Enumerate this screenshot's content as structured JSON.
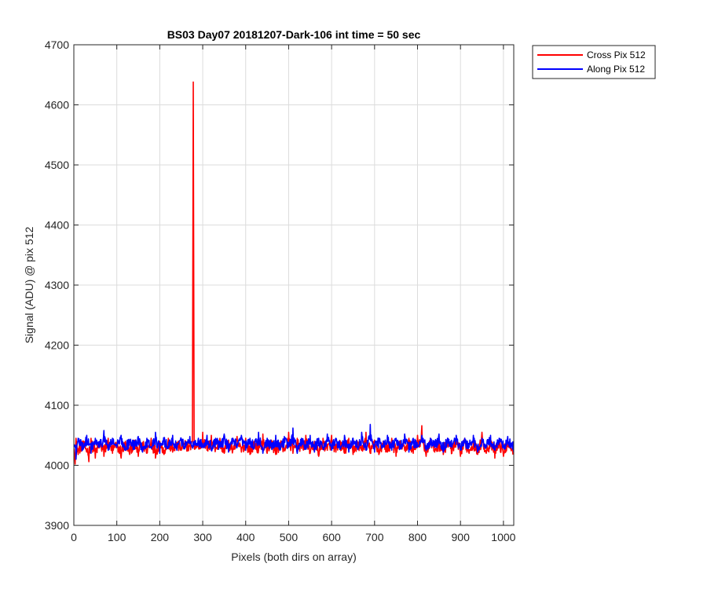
{
  "chart_data": {
    "type": "line",
    "title": "BS03 Day07 20181207-Dark-106 int time = 50 sec",
    "xlabel": "Pixels (both dirs on array)",
    "ylabel": "Signal (ADU) @ pix 512",
    "xlim": [
      0,
      1024
    ],
    "ylim": [
      3900,
      4700
    ],
    "xticks": [
      0,
      100,
      200,
      300,
      400,
      500,
      600,
      700,
      800,
      900,
      1000
    ],
    "yticks": [
      3900,
      4000,
      4100,
      4200,
      4300,
      4400,
      4500,
      4600,
      4700
    ],
    "grid": true,
    "legend_position": "outside-top-right",
    "series": [
      {
        "name": "Cross Pix 512",
        "color": "#ff0000",
        "noise": {
          "baseline": 4030,
          "amplitude": 14,
          "min_dip": 4000
        },
        "points": [
          [
            0,
            4028
          ],
          [
            3,
            4002
          ],
          [
            5,
            4045
          ],
          [
            10,
            4018
          ],
          [
            20,
            4040
          ],
          [
            30,
            4022
          ],
          [
            35,
            4006
          ],
          [
            40,
            4045
          ],
          [
            50,
            4012
          ],
          [
            60,
            4038
          ],
          [
            70,
            4015
          ],
          [
            80,
            4045
          ],
          [
            90,
            4020
          ],
          [
            100,
            4035
          ],
          [
            110,
            4012
          ],
          [
            120,
            4040
          ],
          [
            130,
            4018
          ],
          [
            140,
            4042
          ],
          [
            150,
            4015
          ],
          [
            160,
            4038
          ],
          [
            170,
            4020
          ],
          [
            180,
            4045
          ],
          [
            190,
            4012
          ],
          [
            200,
            4040
          ],
          [
            210,
            4018
          ],
          [
            220,
            4045
          ],
          [
            230,
            4022
          ],
          [
            240,
            4038
          ],
          [
            250,
            4025
          ],
          [
            260,
            4040
          ],
          [
            270,
            4032
          ],
          [
            276,
            4040
          ],
          [
            278,
            4638
          ],
          [
            280,
            4040
          ],
          [
            290,
            4030
          ],
          [
            300,
            4055
          ],
          [
            310,
            4025
          ],
          [
            320,
            4050
          ],
          [
            330,
            4030
          ],
          [
            340,
            4045
          ],
          [
            350,
            4020
          ],
          [
            360,
            4042
          ],
          [
            370,
            4025
          ],
          [
            380,
            4048
          ],
          [
            390,
            4022
          ],
          [
            400,
            4045
          ],
          [
            410,
            4018
          ],
          [
            420,
            4040
          ],
          [
            430,
            4025
          ],
          [
            440,
            4052
          ],
          [
            450,
            4020
          ],
          [
            460,
            4042
          ],
          [
            470,
            4018
          ],
          [
            480,
            4038
          ],
          [
            490,
            4025
          ],
          [
            500,
            4055
          ],
          [
            510,
            4020
          ],
          [
            520,
            4045
          ],
          [
            530,
            4028
          ],
          [
            540,
            4050
          ],
          [
            550,
            4020
          ],
          [
            560,
            4040
          ],
          [
            570,
            4015
          ],
          [
            580,
            4045
          ],
          [
            590,
            4025
          ],
          [
            600,
            4050
          ],
          [
            610,
            4022
          ],
          [
            620,
            4040
          ],
          [
            630,
            4020
          ],
          [
            640,
            4045
          ],
          [
            650,
            4018
          ],
          [
            660,
            4040
          ],
          [
            670,
            4025
          ],
          [
            680,
            4055
          ],
          [
            690,
            4020
          ],
          [
            700,
            4042
          ],
          [
            710,
            4018
          ],
          [
            720,
            4040
          ],
          [
            730,
            4022
          ],
          [
            740,
            4045
          ],
          [
            750,
            4015
          ],
          [
            760,
            4040
          ],
          [
            770,
            4025
          ],
          [
            780,
            4045
          ],
          [
            790,
            4020
          ],
          [
            800,
            4050
          ],
          [
            810,
            4066
          ],
          [
            820,
            4015
          ],
          [
            830,
            4045
          ],
          [
            840,
            4022
          ],
          [
            850,
            4040
          ],
          [
            860,
            4018
          ],
          [
            870,
            4045
          ],
          [
            880,
            4020
          ],
          [
            890,
            4040
          ],
          [
            900,
            4015
          ],
          [
            910,
            4045
          ],
          [
            920,
            4020
          ],
          [
            930,
            4040
          ],
          [
            940,
            4018
          ],
          [
            950,
            4055
          ],
          [
            960,
            4020
          ],
          [
            970,
            4040
          ],
          [
            980,
            4012
          ],
          [
            990,
            4038
          ],
          [
            1000,
            4015
          ],
          [
            1010,
            4040
          ],
          [
            1024,
            4020
          ]
        ]
      },
      {
        "name": "Along Pix 512",
        "color": "#0000ff",
        "noise": {
          "baseline": 4035,
          "amplitude": 13,
          "min_dip": 4005
        },
        "points": [
          [
            0,
            4035
          ],
          [
            5,
            4010
          ],
          [
            10,
            4045
          ],
          [
            20,
            4025
          ],
          [
            30,
            4050
          ],
          [
            40,
            4020
          ],
          [
            50,
            4045
          ],
          [
            60,
            4030
          ],
          [
            70,
            4058
          ],
          [
            80,
            4025
          ],
          [
            90,
            4045
          ],
          [
            100,
            4030
          ],
          [
            110,
            4050
          ],
          [
            120,
            4025
          ],
          [
            130,
            4042
          ],
          [
            140,
            4030
          ],
          [
            150,
            4048
          ],
          [
            160,
            4022
          ],
          [
            170,
            4045
          ],
          [
            180,
            4030
          ],
          [
            190,
            4055
          ],
          [
            200,
            4020
          ],
          [
            210,
            4045
          ],
          [
            220,
            4030
          ],
          [
            230,
            4050
          ],
          [
            240,
            4025
          ],
          [
            250,
            4045
          ],
          [
            260,
            4030
          ],
          [
            270,
            4048
          ],
          [
            280,
            4035
          ],
          [
            290,
            4045
          ],
          [
            300,
            4030
          ],
          [
            310,
            4050
          ],
          [
            320,
            4025
          ],
          [
            330,
            4045
          ],
          [
            340,
            4030
          ],
          [
            350,
            4052
          ],
          [
            360,
            4022
          ],
          [
            370,
            4045
          ],
          [
            380,
            4030
          ],
          [
            390,
            4050
          ],
          [
            400,
            4025
          ],
          [
            410,
            4045
          ],
          [
            420,
            4030
          ],
          [
            430,
            4055
          ],
          [
            440,
            4020
          ],
          [
            450,
            4045
          ],
          [
            460,
            4030
          ],
          [
            470,
            4050
          ],
          [
            480,
            4025
          ],
          [
            490,
            4048
          ],
          [
            500,
            4030
          ],
          [
            510,
            4062
          ],
          [
            520,
            4020
          ],
          [
            530,
            4045
          ],
          [
            540,
            4030
          ],
          [
            550,
            4050
          ],
          [
            560,
            4022
          ],
          [
            570,
            4045
          ],
          [
            580,
            4030
          ],
          [
            590,
            4052
          ],
          [
            600,
            4025
          ],
          [
            610,
            4045
          ],
          [
            620,
            4030
          ],
          [
            630,
            4050
          ],
          [
            640,
            4022
          ],
          [
            650,
            4045
          ],
          [
            660,
            4030
          ],
          [
            670,
            4055
          ],
          [
            680,
            4025
          ],
          [
            690,
            4068
          ],
          [
            700,
            4022
          ],
          [
            710,
            4045
          ],
          [
            720,
            4030
          ],
          [
            730,
            4050
          ],
          [
            740,
            4025
          ],
          [
            750,
            4045
          ],
          [
            760,
            4030
          ],
          [
            770,
            4052
          ],
          [
            780,
            4022
          ],
          [
            790,
            4045
          ],
          [
            800,
            4030
          ],
          [
            810,
            4050
          ],
          [
            820,
            4025
          ],
          [
            830,
            4045
          ],
          [
            840,
            4030
          ],
          [
            850,
            4052
          ],
          [
            860,
            4022
          ],
          [
            870,
            4045
          ],
          [
            880,
            4030
          ],
          [
            890,
            4050
          ],
          [
            900,
            4025
          ],
          [
            910,
            4045
          ],
          [
            920,
            4030
          ],
          [
            930,
            4050
          ],
          [
            940,
            4022
          ],
          [
            950,
            4045
          ],
          [
            960,
            4030
          ],
          [
            970,
            4050
          ],
          [
            980,
            4025
          ],
          [
            990,
            4045
          ],
          [
            1000,
            4030
          ],
          [
            1010,
            4048
          ],
          [
            1024,
            4022
          ]
        ]
      }
    ]
  }
}
